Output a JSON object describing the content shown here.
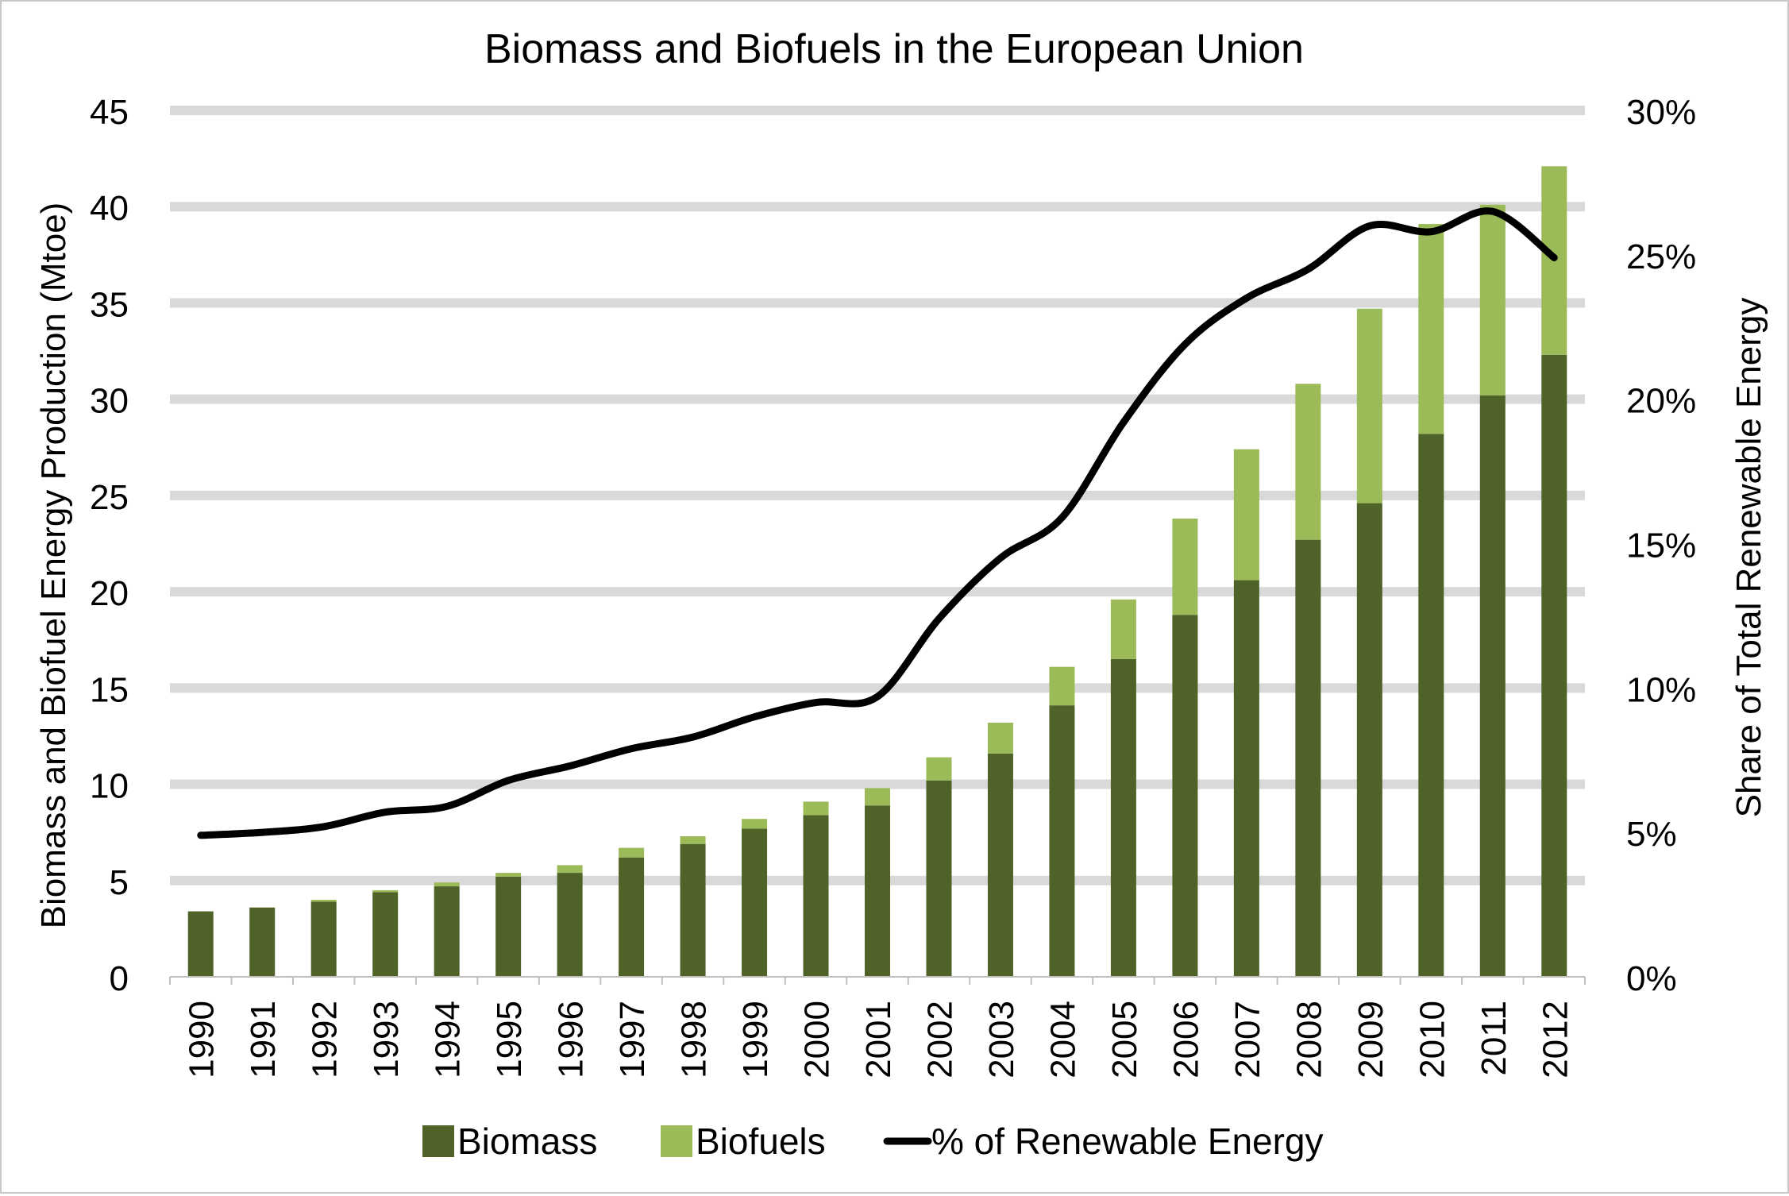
{
  "chart_data": {
    "type": "bar",
    "stacked": true,
    "title": "Biomass and Biofuels in the European Union",
    "ylabel": "Biomass and Biofuel Energy Production (Mtoe)",
    "y2label": "Share of Total Renewable Energy",
    "ylim": [
      0,
      45
    ],
    "yticks": [
      "0",
      "5",
      "10",
      "15",
      "20",
      "25",
      "30",
      "35",
      "40",
      "45"
    ],
    "y2lim": [
      0,
      30
    ],
    "y2ticks": [
      "0%",
      "5%",
      "10%",
      "15%",
      "20%",
      "25%",
      "30%"
    ],
    "grid": true,
    "legend_position": "bottom",
    "categories": [
      "1990",
      "1991",
      "1992",
      "1993",
      "1994",
      "1995",
      "1996",
      "1997",
      "1998",
      "1999",
      "2000",
      "2001",
      "2002",
      "2003",
      "2004",
      "2005",
      "2006",
      "2007",
      "2008",
      "2009",
      "2010",
      "2011",
      "2012"
    ],
    "series": [
      {
        "name": "Biomass",
        "type": "bar",
        "axis": "left",
        "color": "#4f6228",
        "values": [
          3.4,
          3.6,
          3.9,
          4.4,
          4.7,
          5.2,
          5.4,
          6.2,
          6.9,
          7.7,
          8.4,
          8.9,
          10.2,
          11.6,
          14.1,
          16.5,
          18.8,
          20.6,
          22.7,
          24.6,
          28.2,
          30.2,
          32.3
        ]
      },
      {
        "name": "Biofuels",
        "type": "bar",
        "axis": "left",
        "color": "#9bbb59",
        "values": [
          0.0,
          0.0,
          0.1,
          0.1,
          0.2,
          0.2,
          0.4,
          0.5,
          0.4,
          0.5,
          0.7,
          0.9,
          1.2,
          1.6,
          2.0,
          3.1,
          5.0,
          6.8,
          8.1,
          10.1,
          10.9,
          9.9,
          9.8
        ]
      },
      {
        "name": "% of Renewable Energy",
        "type": "line",
        "axis": "right",
        "color": "#000000",
        "values": [
          4.9,
          5.0,
          5.2,
          5.7,
          5.9,
          6.8,
          7.3,
          7.9,
          8.3,
          9.0,
          9.5,
          9.7,
          12.4,
          14.5,
          15.9,
          19.2,
          21.9,
          23.5,
          24.5,
          26.0,
          25.8,
          26.5,
          24.9
        ]
      }
    ]
  },
  "colors": {
    "gridline": "#d9d9d9",
    "axis_line": "#bfbfbf",
    "text": "#000000"
  }
}
